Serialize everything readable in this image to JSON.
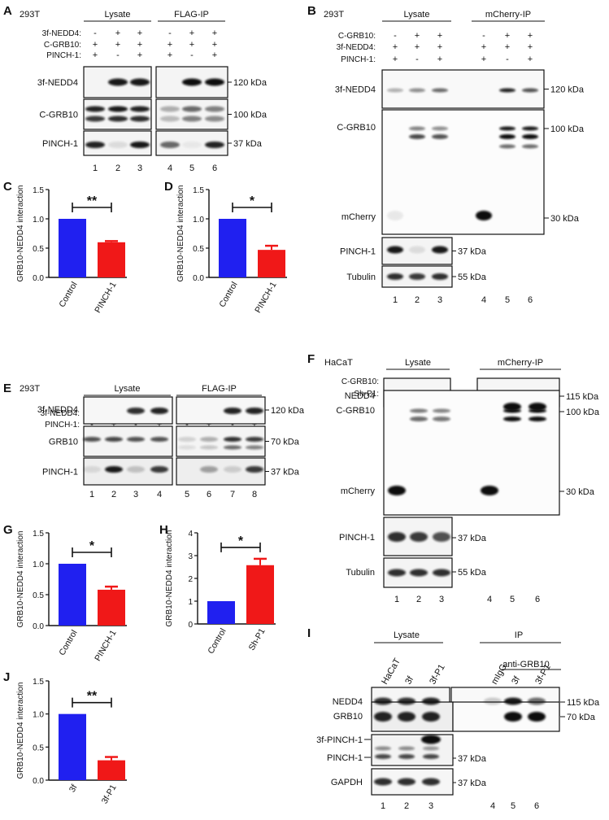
{
  "panels": {
    "A": {
      "letter": "A",
      "cell": "293T",
      "groups": [
        "Lysate",
        "FLAG-IP"
      ],
      "conditions": [
        {
          "label": "3f-NEDD4:",
          "values": [
            "-",
            "+",
            "+",
            "-",
            "+",
            "+"
          ]
        },
        {
          "label": "C-GRB10:",
          "values": [
            "+",
            "+",
            "+",
            "+",
            "+",
            "+"
          ]
        },
        {
          "label": "PINCH-1:",
          "values": [
            "+",
            "-",
            "+",
            "+",
            "-",
            "+"
          ]
        }
      ],
      "bands": [
        {
          "label": "3f-NEDD4",
          "mw": "120 kDa"
        },
        {
          "label": "C-GRB10",
          "mw": "100 kDa"
        },
        {
          "label": "PINCH-1",
          "mw": "37 kDa"
        }
      ],
      "lanes": [
        "1",
        "2",
        "3",
        "4",
        "5",
        "6"
      ]
    },
    "B": {
      "letter": "B",
      "cell": "293T",
      "groups": [
        "Lysate",
        "mCherry-IP"
      ],
      "conditions": [
        {
          "label": "C-GRB10:",
          "values": [
            "-",
            "+",
            "+",
            "-",
            "+",
            "+"
          ]
        },
        {
          "label": "3f-NEDD4:",
          "values": [
            "+",
            "+",
            "+",
            "+",
            "+",
            "+"
          ]
        },
        {
          "label": "PINCH-1:",
          "values": [
            "+",
            "-",
            "+",
            "+",
            "-",
            "+"
          ]
        }
      ],
      "bands": [
        {
          "label": "3f-NEDD4",
          "mw": "120 kDa"
        },
        {
          "label": "C-GRB10",
          "mw": "100 kDa"
        },
        {
          "label": "mCherry",
          "mw": "30 kDa"
        },
        {
          "label": "PINCH-1",
          "mw": "37 kDa"
        },
        {
          "label": "Tubulin",
          "mw": "55 kDa"
        }
      ],
      "lanes": [
        "1",
        "2",
        "3",
        "4",
        "5",
        "6"
      ]
    },
    "E": {
      "letter": "E",
      "cell": "293T",
      "groups": [
        "Lysate",
        "FLAG-IP"
      ],
      "conditions": [
        {
          "label": "3f-NEDD4:",
          "values": [
            "-",
            "-",
            "+",
            "+",
            "-",
            "-",
            "+",
            "+"
          ]
        },
        {
          "label": "PINCH-1:",
          "values": [
            "-",
            "+",
            "-",
            "+",
            "-",
            "+",
            "-",
            "+"
          ]
        }
      ],
      "bands": [
        {
          "label": "3f-NEDD4",
          "mw": "120 kDa"
        },
        {
          "label": "GRB10",
          "mw": "70 kDa"
        },
        {
          "label": "PINCH-1",
          "mw": "37 kDa"
        }
      ],
      "lanes": [
        "1",
        "2",
        "3",
        "4",
        "5",
        "6",
        "7",
        "8"
      ]
    },
    "F": {
      "letter": "F",
      "cell": "HaCaT",
      "groups": [
        "Lysate",
        "mCherry-IP"
      ],
      "conditions": [
        {
          "label": "C-GRB10:",
          "values": [
            "-",
            "+",
            "+",
            "-",
            "+",
            "+"
          ]
        },
        {
          "label": "Sh-P1:",
          "values": [
            "-",
            "-",
            "+",
            "-",
            "-",
            "+"
          ]
        }
      ],
      "bands": [
        {
          "label": "NEDD4",
          "mw": "115 kDa"
        },
        {
          "label": "C-GRB10",
          "mw": "100 kDa"
        },
        {
          "label": "mCherry",
          "mw": "30 kDa"
        },
        {
          "label": "PINCH-1",
          "mw": "37 kDa"
        },
        {
          "label": "Tubulin",
          "mw": "55 kDa"
        }
      ],
      "lanes": [
        "1",
        "2",
        "3",
        "4",
        "5",
        "6"
      ]
    },
    "I": {
      "letter": "I",
      "groups": [
        "Lysate",
        "IP"
      ],
      "ip_sub": "anti-GRB10",
      "column_labels": [
        "HaCaT",
        "3f",
        "3f-P1",
        "mIgG",
        "3f",
        "3f-P1"
      ],
      "bands": [
        {
          "label": "NEDD4",
          "mw": "115 kDa"
        },
        {
          "label": "GRB10",
          "mw": "70 kDa"
        },
        {
          "label": "3f-PINCH-1",
          "mw": ""
        },
        {
          "label": "PINCH-1",
          "mw": "37 kDa"
        },
        {
          "label": "GAPDH",
          "mw": "37 kDa"
        }
      ],
      "lanes": [
        "1",
        "2",
        "3",
        "4",
        "5",
        "6"
      ]
    }
  },
  "chart_data": [
    {
      "panel": "C",
      "type": "bar",
      "categories": [
        "Control",
        "PINCH-1"
      ],
      "values": [
        1.0,
        0.6
      ],
      "errors": [
        0,
        0.02
      ],
      "ylabel": "GRB10-NEDD4 interaction",
      "ylim": [
        0,
        1.5
      ],
      "yticks": [
        "0.0",
        "0.5",
        "1.0",
        "1.5"
      ],
      "significance": "**",
      "colors": [
        "#2020f0",
        "#f01818"
      ]
    },
    {
      "panel": "D",
      "type": "bar",
      "categories": [
        "Control",
        "PINCH-1"
      ],
      "values": [
        1.0,
        0.47
      ],
      "errors": [
        0,
        0.07
      ],
      "ylabel": "GRB10-NEDD4 interaction",
      "ylim": [
        0,
        1.5
      ],
      "yticks": [
        "0.0",
        "0.5",
        "1.0",
        "1.5"
      ],
      "significance": "*",
      "colors": [
        "#2020f0",
        "#f01818"
      ]
    },
    {
      "panel": "G",
      "type": "bar",
      "categories": [
        "Control",
        "PINCH-1"
      ],
      "values": [
        1.0,
        0.58
      ],
      "errors": [
        0,
        0.05
      ],
      "ylabel": "GRB10-NEDD4 interaction",
      "ylim": [
        0,
        1.5
      ],
      "yticks": [
        "0.0",
        "0.5",
        "1.0",
        "1.5"
      ],
      "significance": "*",
      "colors": [
        "#2020f0",
        "#f01818"
      ]
    },
    {
      "panel": "H",
      "type": "bar",
      "categories": [
        "Control",
        "Sh-P1"
      ],
      "values": [
        1.0,
        2.58
      ],
      "errors": [
        0,
        0.28
      ],
      "ylabel": "GRB10-NEDD4 interaction",
      "ylim": [
        0,
        4
      ],
      "yticks": [
        "0",
        "1",
        "2",
        "3",
        "4"
      ],
      "significance": "*",
      "colors": [
        "#2020f0",
        "#f01818"
      ]
    },
    {
      "panel": "J",
      "type": "bar",
      "categories": [
        "3f",
        "3f-P1"
      ],
      "values": [
        1.0,
        0.3
      ],
      "errors": [
        0,
        0.05
      ],
      "ylabel": "GRB10-NEDD4 interaction",
      "ylim": [
        0,
        1.5
      ],
      "yticks": [
        "0.0",
        "0.5",
        "1.0",
        "1.5"
      ],
      "significance": "**",
      "colors": [
        "#2020f0",
        "#f01818"
      ]
    }
  ]
}
